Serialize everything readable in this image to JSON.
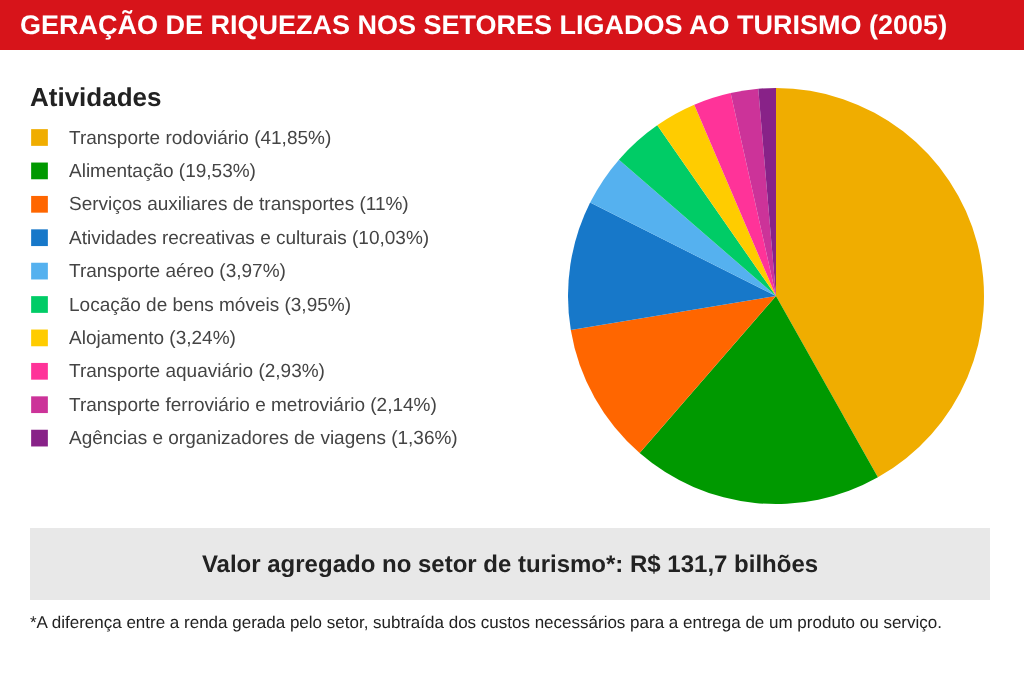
{
  "chart_data": {
    "type": "pie",
    "title": "GERAÇÃO DE RIQUEZAS NOS SETORES LIGADOS AO TURISMO (2005)",
    "legend_title": "Atividades",
    "legend": "left",
    "categories": [
      "Transporte rodoviário",
      "Alimentação",
      "Serviços auxiliares de transportes",
      "Atividades recreativas e culturais",
      "Transporte aéreo",
      "Locação de bens móveis",
      "Alojamento",
      "Transporte aquaviário",
      "Transporte ferroviário e metroviário",
      "Agências e organizadores de viagens"
    ],
    "values": [
      41.85,
      19.53,
      11,
      10.03,
      3.97,
      3.95,
      3.24,
      2.93,
      2.14,
      1.36
    ],
    "value_labels": [
      "(41,85%)",
      "(19,53%)",
      "(11%)",
      "(10,03%)",
      "(3,97%)",
      "(3,95%)",
      "(3,24%)",
      "(2,93%)",
      "(2,14%)",
      "(1,36%)"
    ],
    "colors": [
      "#f0ad00",
      "#009900",
      "#ff6600",
      "#1778c9",
      "#55b1ef",
      "#00cc66",
      "#ffcc00",
      "#ff3399",
      "#cc3399",
      "#882288"
    ],
    "annotations": [
      "Valor agregado no setor de turismo*:  R$ 131,7 bilhões",
      "*A diferença entre a renda gerada pelo setor, subtraída dos custos necessários para a entrega de um produto ou serviço."
    ]
  }
}
